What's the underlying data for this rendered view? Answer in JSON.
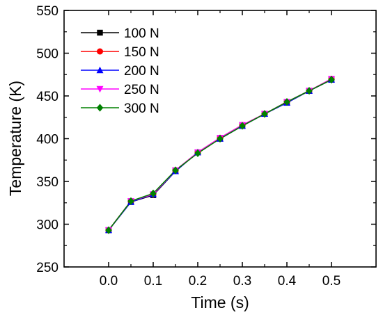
{
  "chart_data": {
    "type": "line",
    "title": "",
    "xlabel": "Time (s)",
    "ylabel": "Temperature (K)",
    "xlim": [
      -0.1,
      0.6
    ],
    "ylim": [
      250,
      550
    ],
    "xticks": [
      "0.0",
      "0.1",
      "0.2",
      "0.3",
      "0.4",
      "0.5"
    ],
    "yticks": [
      "250",
      "300",
      "350",
      "400",
      "450",
      "500",
      "550"
    ],
    "grid": false,
    "legend_position": "top-left",
    "x": [
      0.0,
      0.05,
      0.1,
      0.15,
      0.2,
      0.25,
      0.3,
      0.35,
      0.4,
      0.45,
      0.5
    ],
    "series": [
      {
        "name": "100 N",
        "color": "#000000",
        "marker": "square",
        "values": [
          293,
          326,
          334,
          362,
          384,
          400,
          415,
          429,
          442,
          456,
          469
        ]
      },
      {
        "name": "150 N",
        "color": "#ff0000",
        "marker": "circle",
        "values": [
          293,
          327,
          335,
          363,
          384,
          401,
          416,
          429,
          443,
          456,
          470
        ]
      },
      {
        "name": "200 N",
        "color": "#0000ff",
        "marker": "triangle-up",
        "values": [
          293,
          326,
          335,
          362,
          384,
          400,
          415,
          429,
          442,
          456,
          469
        ]
      },
      {
        "name": "250 N",
        "color": "#ff00ff",
        "marker": "triangle-down",
        "values": [
          293,
          327,
          335,
          363,
          384,
          401,
          416,
          429,
          443,
          456,
          470
        ]
      },
      {
        "name": "300 N",
        "color": "#008000",
        "marker": "diamond",
        "values": [
          293,
          327,
          336,
          363,
          383,
          400,
          415,
          429,
          443,
          456,
          469
        ]
      }
    ]
  }
}
